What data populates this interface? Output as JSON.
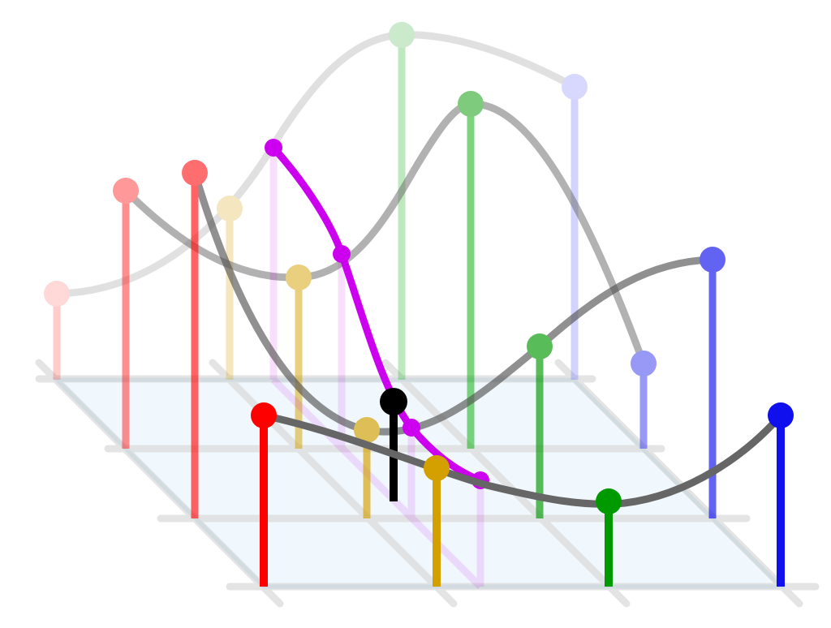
{
  "figure": {
    "description_free": true,
    "colors": {
      "plane_fill": "#eaf5fc",
      "plane_edge": "#bfe0f0",
      "grid_line": "#dadada",
      "curve": "#666666",
      "highlight_curve": "#cc00ee",
      "highlight_point": "#000000",
      "red": "#ff0000",
      "gold": "#d4a000",
      "green": "#009900",
      "blue": "#1010ee",
      "magenta": "#cc00ee"
    },
    "rows": [
      {
        "name": "back",
        "opacity": 0.22
      },
      {
        "name": "second",
        "opacity": 0.45
      },
      {
        "name": "third",
        "opacity": 0.7
      },
      {
        "name": "front",
        "opacity": 1.0
      }
    ],
    "columns": [
      "red",
      "gold",
      "green",
      "blue"
    ],
    "highlight": {
      "series": "magenta",
      "point": "black"
    }
  }
}
